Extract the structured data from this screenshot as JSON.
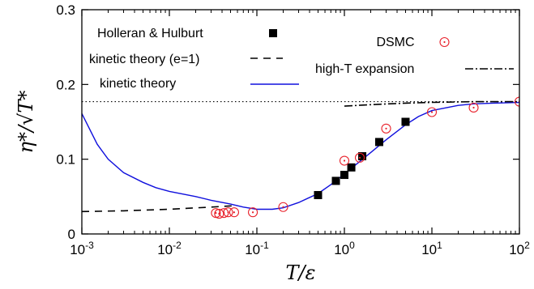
{
  "chart_data": {
    "type": "line",
    "xscale": "log",
    "xlim": [
      0.001,
      100
    ],
    "ylim": [
      0,
      0.3
    ],
    "grid": false,
    "xlabel": "T/ε",
    "ylabel": "η*/√T*",
    "xticks": [
      {
        "value": 0.001,
        "base": "10",
        "exp": "-3"
      },
      {
        "value": 0.01,
        "base": "10",
        "exp": "-2"
      },
      {
        "value": 0.1,
        "base": "10",
        "exp": "-1"
      },
      {
        "value": 1,
        "base": "10",
        "exp": "0"
      },
      {
        "value": 10,
        "base": "10",
        "exp": "1"
      },
      {
        "value": 100,
        "base": "10",
        "exp": "2"
      }
    ],
    "yticks": [
      {
        "value": 0,
        "label": "0"
      },
      {
        "value": 0.1,
        "label": "0.1"
      },
      {
        "value": 0.2,
        "label": "0.2"
      },
      {
        "value": 0.3,
        "label": "0.3"
      }
    ],
    "reference_line": {
      "y": 0.177,
      "style": "dotted"
    },
    "series": [
      {
        "name": "Holleran & Hulburt",
        "style": "marker-square",
        "color": "#000000",
        "x": [
          0.5,
          0.8,
          1.0,
          1.2,
          1.6,
          2.5,
          5.0
        ],
        "y": [
          0.052,
          0.071,
          0.079,
          0.089,
          0.104,
          0.123,
          0.15
        ]
      },
      {
        "name": "kinetic theory (e=1)",
        "style": "dashed",
        "color": "#000000",
        "x": [
          0.001,
          0.003,
          0.01,
          0.03,
          0.06
        ],
        "y": [
          0.03,
          0.031,
          0.033,
          0.036,
          0.038
        ]
      },
      {
        "name": "kinetic theory",
        "style": "solid",
        "color": "#1010dd",
        "x": [
          0.001,
          0.0015,
          0.002,
          0.003,
          0.005,
          0.007,
          0.01,
          0.02,
          0.03,
          0.05,
          0.07,
          0.1,
          0.15,
          0.2,
          0.3,
          0.5,
          0.7,
          1.0,
          1.5,
          2,
          3,
          5,
          7,
          10,
          20,
          30,
          50,
          100
        ],
        "y": [
          0.161,
          0.12,
          0.1,
          0.082,
          0.069,
          0.062,
          0.057,
          0.05,
          0.045,
          0.04,
          0.036,
          0.033,
          0.033,
          0.035,
          0.042,
          0.054,
          0.066,
          0.08,
          0.097,
          0.109,
          0.126,
          0.146,
          0.157,
          0.165,
          0.172,
          0.174,
          0.175,
          0.176
        ]
      },
      {
        "name": "DSMC",
        "style": "marker-circle",
        "color": "#e8202a",
        "x": [
          0.034,
          0.037,
          0.042,
          0.047,
          0.055,
          0.09,
          0.2,
          1.0,
          1.5,
          3.0,
          10,
          30,
          100
        ],
        "y": [
          0.028,
          0.027,
          0.028,
          0.029,
          0.029,
          0.029,
          0.036,
          0.098,
          0.102,
          0.141,
          0.163,
          0.169,
          0.177
        ]
      },
      {
        "name": "high-T expansion",
        "style": "dashdot",
        "color": "#000000",
        "x": [
          1.0,
          2,
          5,
          10,
          30,
          100
        ],
        "y": [
          0.171,
          0.173,
          0.175,
          0.176,
          0.177,
          0.177
        ]
      }
    ],
    "legend": [
      {
        "label": "Holleran & Hulburt",
        "symbol": "marker-square",
        "color": "#000000"
      },
      {
        "label": "kinetic theory (e=1)",
        "symbol": "dashed",
        "color": "#000000"
      },
      {
        "label": "kinetic theory",
        "symbol": "solid",
        "color": "#1010dd"
      },
      {
        "label": "DSMC",
        "symbol": "marker-circle",
        "color": "#e8202a"
      },
      {
        "label": "high-T expansion",
        "symbol": "dashdot",
        "color": "#000000"
      }
    ]
  }
}
